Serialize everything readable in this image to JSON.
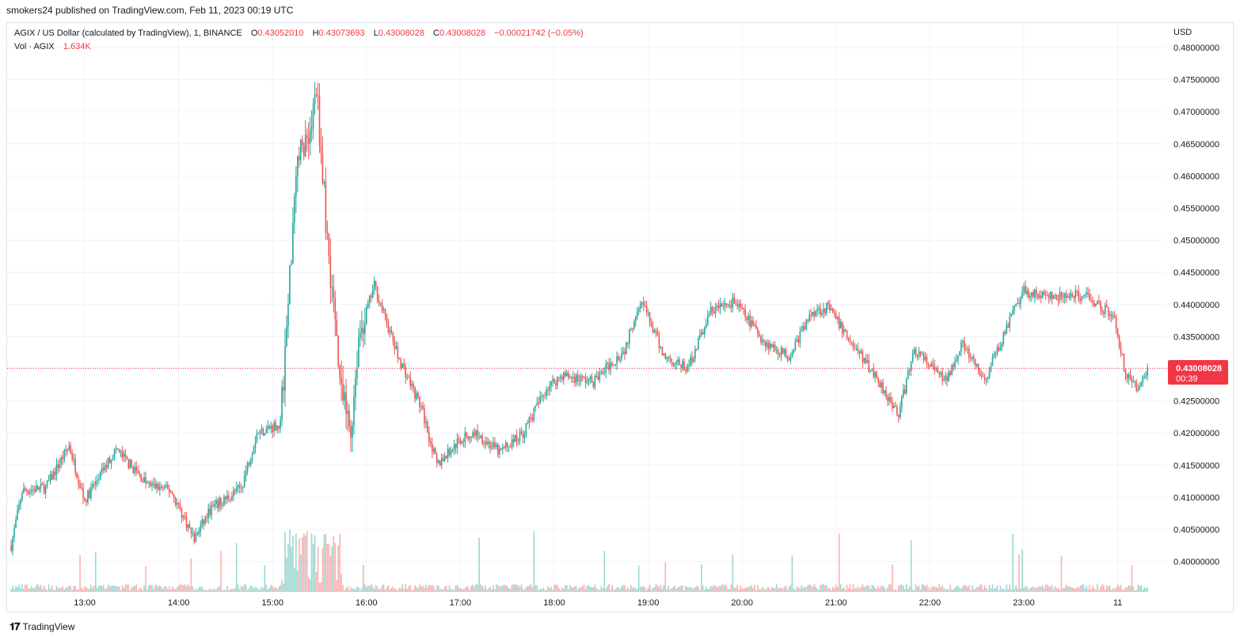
{
  "publisher_line": "smokers24 published on TradingView.com, Feb 11, 2023 00:19 UTC",
  "legend": {
    "symbol": "AGIX / US Dollar (calculated by TradingView), 1, BINANCE",
    "o_label": "O",
    "o_value": "0.43052010",
    "h_label": "H",
    "h_value": "0.43073693",
    "l_label": "L",
    "l_value": "0.43008028",
    "c_label": "C",
    "c_value": "0.43008028",
    "change": "−0.00021742 (−0.05%)",
    "vol_label": "Vol · AGIX",
    "vol_value": "1.634K"
  },
  "footer": {
    "brand": "TradingView"
  },
  "colors": {
    "up": "#26a69a",
    "down": "#ef5350",
    "price_tag": "#f23645",
    "grid": "#f0f3fa"
  },
  "chart_data": {
    "type": "candlestick",
    "currency": "USD",
    "last_price": "0.43008028",
    "countdown": "00:39",
    "y_ticks": [
      "0.48000000",
      "0.47500000",
      "0.47000000",
      "0.46500000",
      "0.46000000",
      "0.45500000",
      "0.45000000",
      "0.44500000",
      "0.44000000",
      "0.43500000",
      "0.43000000",
      "0.42500000",
      "0.42000000",
      "0.41500000",
      "0.41000000",
      "0.40500000",
      "0.40000000"
    ],
    "x_ticks": [
      "13:00",
      "14:00",
      "15:00",
      "16:00",
      "17:00",
      "18:00",
      "19:00",
      "20:00",
      "21:00",
      "22:00",
      "23:00",
      "11"
    ],
    "x_range": [
      "12:13",
      "00:19"
    ],
    "y_range": [
      0.3958,
      0.4818
    ],
    "approx_close_path": [
      {
        "t": "12:13",
        "v": 0.4025
      },
      {
        "t": "12:20",
        "v": 0.411
      },
      {
        "t": "12:35",
        "v": 0.4115
      },
      {
        "t": "12:50",
        "v": 0.418
      },
      {
        "t": "13:00",
        "v": 0.4095
      },
      {
        "t": "13:20",
        "v": 0.4175
      },
      {
        "t": "13:40",
        "v": 0.412
      },
      {
        "t": "13:55",
        "v": 0.411
      },
      {
        "t": "14:10",
        "v": 0.4035
      },
      {
        "t": "14:20",
        "v": 0.408
      },
      {
        "t": "14:40",
        "v": 0.4115
      },
      {
        "t": "14:50",
        "v": 0.42
      },
      {
        "t": "15:05",
        "v": 0.4215
      },
      {
        "t": "15:10",
        "v": 0.44
      },
      {
        "t": "15:15",
        "v": 0.462
      },
      {
        "t": "15:25",
        "v": 0.468
      },
      {
        "t": "15:28",
        "v": 0.474
      },
      {
        "t": "15:35",
        "v": 0.45
      },
      {
        "t": "15:45",
        "v": 0.425
      },
      {
        "t": "15:50",
        "v": 0.42
      },
      {
        "t": "15:55",
        "v": 0.435
      },
      {
        "t": "16:05",
        "v": 0.443
      },
      {
        "t": "16:20",
        "v": 0.432
      },
      {
        "t": "16:35",
        "v": 0.424
      },
      {
        "t": "16:45",
        "v": 0.415
      },
      {
        "t": "17:00",
        "v": 0.419
      },
      {
        "t": "17:10",
        "v": 0.42
      },
      {
        "t": "17:25",
        "v": 0.417
      },
      {
        "t": "17:40",
        "v": 0.42
      },
      {
        "t": "17:55",
        "v": 0.427
      },
      {
        "t": "18:05",
        "v": 0.429
      },
      {
        "t": "18:25",
        "v": 0.428
      },
      {
        "t": "18:45",
        "v": 0.433
      },
      {
        "t": "18:55",
        "v": 0.441
      },
      {
        "t": "19:10",
        "v": 0.432
      },
      {
        "t": "19:25",
        "v": 0.43
      },
      {
        "t": "19:40",
        "v": 0.439
      },
      {
        "t": "19:55",
        "v": 0.4405
      },
      {
        "t": "20:15",
        "v": 0.434
      },
      {
        "t": "20:30",
        "v": 0.432
      },
      {
        "t": "20:45",
        "v": 0.439
      },
      {
        "t": "20:55",
        "v": 0.4395
      },
      {
        "t": "21:10",
        "v": 0.434
      },
      {
        "t": "21:25",
        "v": 0.429
      },
      {
        "t": "21:40",
        "v": 0.423
      },
      {
        "t": "21:50",
        "v": 0.433
      },
      {
        "t": "22:10",
        "v": 0.428
      },
      {
        "t": "22:20",
        "v": 0.434
      },
      {
        "t": "22:35",
        "v": 0.428
      },
      {
        "t": "22:50",
        "v": 0.437
      },
      {
        "t": "23:00",
        "v": 0.442
      },
      {
        "t": "23:20",
        "v": 0.441
      },
      {
        "t": "23:40",
        "v": 0.4415
      },
      {
        "t": "23:58",
        "v": 0.438
      },
      {
        "t": "00:05",
        "v": 0.429
      },
      {
        "t": "00:12",
        "v": 0.427
      },
      {
        "t": "00:19",
        "v": 0.4301
      }
    ]
  }
}
